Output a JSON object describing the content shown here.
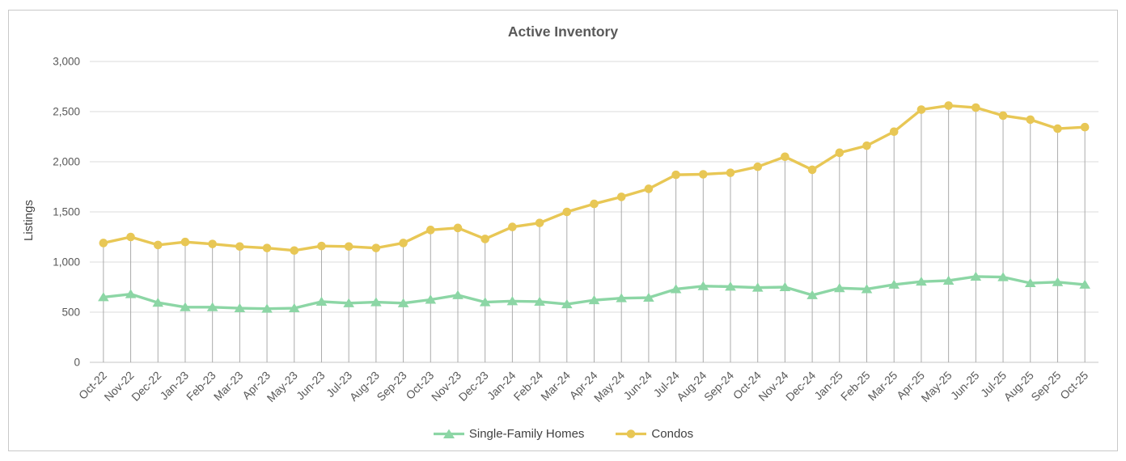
{
  "chart_data": {
    "type": "line",
    "title": "Active Inventory",
    "ylabel": "Listings",
    "xlabel": "",
    "ylim": [
      0,
      3000
    ],
    "ytick_step": 500,
    "ytick_labels": [
      "0",
      "500",
      "1,000",
      "1,500",
      "2,000",
      "2,500",
      "3,000"
    ],
    "grid": "horizontal-only",
    "droplines_series": "Condos",
    "legend_position": "bottom-center",
    "categories": [
      "Oct-22",
      "Nov-22",
      "Dec-22",
      "Jan-23",
      "Feb-23",
      "Mar-23",
      "Apr-23",
      "May-23",
      "Jun-23",
      "Jul-23",
      "Aug-23",
      "Sep-23",
      "Oct-23",
      "Nov-23",
      "Dec-23",
      "Jan-24",
      "Feb-24",
      "Mar-24",
      "Apr-24",
      "May-24",
      "Jun-24",
      "Jul-24",
      "Aug-24",
      "Sep-24",
      "Oct-24",
      "Nov-24",
      "Dec-24",
      "Jan-25",
      "Feb-25",
      "Mar-25",
      "Apr-25",
      "May-25",
      "Jun-25",
      "Jul-25",
      "Aug-25",
      "Sep-25",
      "Oct-25"
    ],
    "series": [
      {
        "name": "Single-Family Homes",
        "marker": "triangle",
        "color": "#8cd6a5",
        "values": [
          650,
          680,
          595,
          550,
          550,
          540,
          535,
          540,
          605,
          590,
          600,
          590,
          625,
          670,
          600,
          610,
          605,
          580,
          620,
          640,
          645,
          730,
          760,
          755,
          745,
          750,
          670,
          740,
          730,
          775,
          805,
          815,
          855,
          850,
          790,
          800,
          775
        ]
      },
      {
        "name": "Condos",
        "marker": "circle",
        "color": "#e8c755",
        "values": [
          1190,
          1250,
          1170,
          1200,
          1180,
          1155,
          1140,
          1115,
          1160,
          1155,
          1140,
          1190,
          1320,
          1340,
          1230,
          1350,
          1390,
          1500,
          1580,
          1650,
          1730,
          1870,
          1875,
          1890,
          1950,
          2050,
          1920,
          2090,
          2160,
          2300,
          2520,
          2560,
          2540,
          2460,
          2420,
          2330,
          2345
        ]
      }
    ],
    "colors": {
      "grid": "#e2e2e2",
      "axis_line": "#d0d0d0",
      "dropline": "#ababab",
      "tick_text": "#595959",
      "title_text": "#595959",
      "legend_text": "#404040",
      "frame_border": "#c9c9c9"
    }
  }
}
